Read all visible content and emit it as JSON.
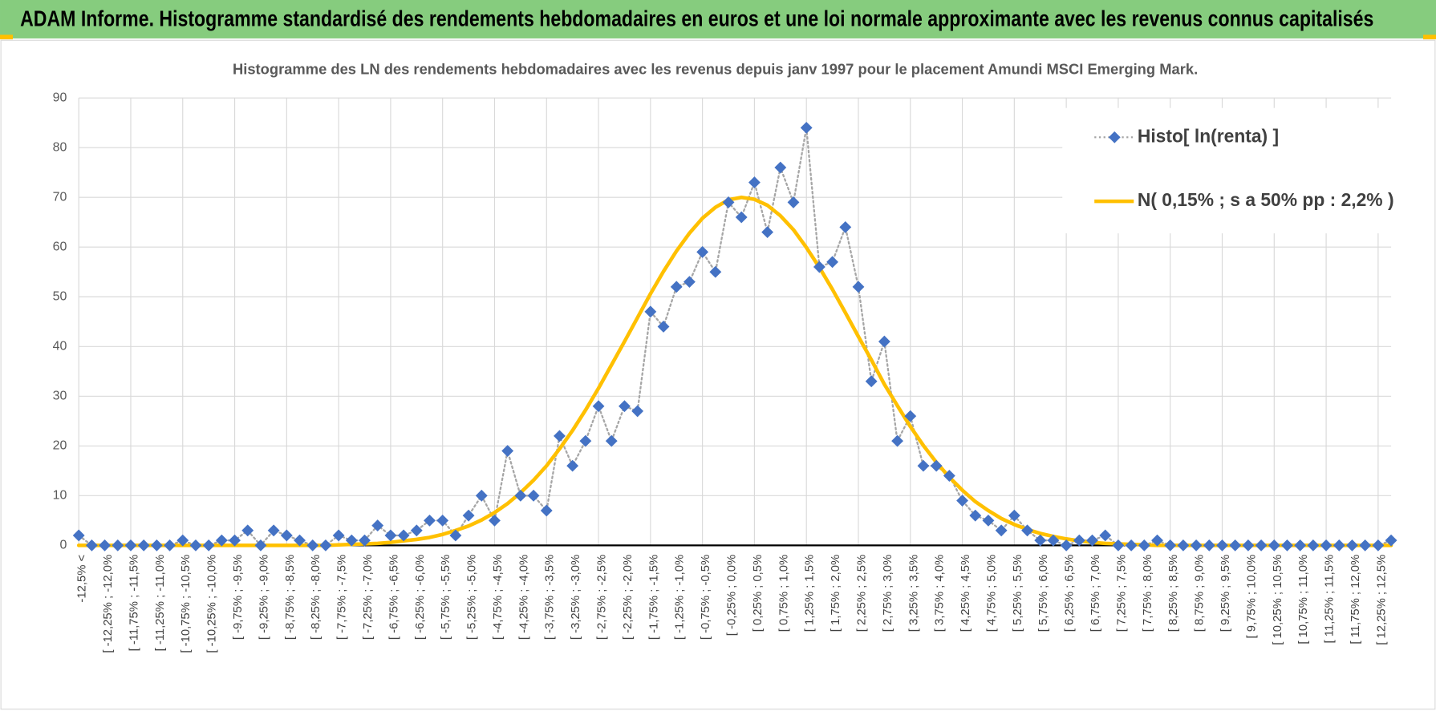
{
  "header": {
    "title": "ADAM Informe. Histogramme standardisé des rendements hebdomadaires en euros et une loi normale approximante avec les revenus connus capitalisés"
  },
  "chart_data": {
    "type": "line",
    "title": "Histogramme des LN des rendements hebdomadaires avec les revenus depuis janv 1997 pour le placement Amundi MSCI Emerging Mark.",
    "categories": [
      "-12,5% <",
      null,
      "[ -12,25% ; -12,0%",
      null,
      "[ -11,75% ; -11,5%",
      null,
      "[ -11,25% ; -11,0%",
      null,
      "[ -10,75% ; -10,5%",
      null,
      "[ -10,25% ; -10,0%",
      null,
      "[ -9,75% ; -9,5%",
      null,
      "[ -9,25% ; -9,0%",
      null,
      "[ -8,75% ; -8,5%",
      null,
      "[ -8,25% ; -8,0%",
      null,
      "[ -7,75% ; -7,5%",
      null,
      "[ -7,25% ; -7,0%",
      null,
      "[ -6,75% ; -6,5%",
      null,
      "[ -6,25% ; -6,0%",
      null,
      "[ -5,75% ; -5,5%",
      null,
      "[ -5,25% ; -5,0%",
      null,
      "[ -4,75% ; -4,5%",
      null,
      "[ -4,25% ; -4,0%",
      null,
      "[ -3,75% ; -3,5%",
      null,
      "[ -3,25% ; -3,0%",
      null,
      "[ -2,75% ; -2,5%",
      null,
      "[ -2,25% ; -2,0%",
      null,
      "[ -1,75% ; -1,5%",
      null,
      "[ -1,25% ; -1,0%",
      null,
      "[ -0,75% ; -0,5%",
      null,
      "[ -0,25% ; 0,0%",
      null,
      "[ 0,25% ; 0,5%",
      null,
      "[ 0,75% ; 1,0%",
      null,
      "[ 1,25% ; 1,5%",
      null,
      "[ 1,75% ; 2,0%",
      null,
      "[ 2,25% ; 2,5%",
      null,
      "[ 2,75% ; 3,0%",
      null,
      "[ 3,25% ; 3,5%",
      null,
      "[ 3,75% ; 4,0%",
      null,
      "[ 4,25% ; 4,5%",
      null,
      "[ 4,75% ; 5,0%",
      null,
      "[ 5,25% ; 5,5%",
      null,
      "[ 5,75% ; 6,0%",
      null,
      "[ 6,25% ; 6,5%",
      null,
      "[ 6,75% ; 7,0%",
      null,
      "[ 7,25% ; 7,5%",
      null,
      "[ 7,75% ; 8,0%",
      null,
      "[ 8,25% ; 8,5%",
      null,
      "[ 8,75% ; 9,0%",
      null,
      "[ 9,25% ; 9,5%",
      null,
      "[ 9,75% ; 10,0%",
      null,
      "[ 10,25% ; 10,5%",
      null,
      "[ 10,75% ; 11,0%",
      null,
      "[ 11,25% ; 11,5%",
      null,
      "[ 11,75% ; 12,0%",
      null,
      "[ 12,25% ; 12,5%",
      null
    ],
    "series": [
      {
        "name": "Histo[ ln(renta) ]",
        "color": "#4472c4",
        "line_color": "#a6a6a6",
        "line_style": "dotted",
        "marker": "diamond",
        "values": [
          2,
          0,
          0,
          0,
          0,
          0,
          0,
          0,
          1,
          0,
          0,
          1,
          1,
          3,
          0,
          3,
          2,
          1,
          0,
          0,
          2,
          1,
          1,
          4,
          2,
          2,
          3,
          5,
          5,
          2,
          6,
          10,
          5,
          19,
          10,
          10,
          7,
          22,
          16,
          21,
          28,
          21,
          28,
          27,
          47,
          44,
          52,
          53,
          59,
          55,
          69,
          66,
          73,
          63,
          76,
          69,
          84,
          56,
          57,
          64,
          52,
          33,
          41,
          21,
          26,
          16,
          16,
          14,
          9,
          6,
          5,
          3,
          6,
          3,
          1,
          1,
          0,
          1,
          1,
          2,
          0,
          0,
          0,
          1,
          0,
          0,
          0,
          0,
          0,
          0,
          0,
          0,
          0,
          0,
          0,
          0,
          0,
          0,
          0,
          0,
          0,
          1
        ]
      },
      {
        "name": "N( 0,15% ; s a 50% pp : 2,2% )",
        "color": "#ffc000",
        "line_style": "solid",
        "marker": "none",
        "values": [
          0,
          0,
          0,
          0,
          0,
          0,
          0,
          0,
          0,
          0,
          0,
          0,
          0,
          0,
          0,
          0,
          0,
          0,
          0,
          0,
          0.1,
          0.2,
          0.3,
          0.4,
          0.6,
          0.9,
          1.2,
          1.6,
          2.2,
          3.0,
          3.9,
          5.1,
          6.6,
          8.4,
          10.6,
          13.1,
          16.0,
          19.4,
          23.1,
          27.2,
          31.6,
          36.3,
          41.0,
          45.8,
          50.6,
          55.1,
          59.2,
          62.8,
          65.8,
          68.0,
          69.5,
          70,
          69.6,
          68.4,
          66.3,
          63.5,
          59.9,
          55.9,
          51.5,
          46.8,
          42.0,
          37.3,
          32.4,
          28.1,
          23.9,
          20.1,
          16.7,
          13.7,
          11.1,
          8.8,
          7.0,
          5.4,
          4.2,
          3.2,
          2.4,
          1.8,
          1.3,
          0.9,
          0.6,
          0.4,
          0.3,
          0.2,
          0.1,
          0,
          0,
          0,
          0,
          0,
          0,
          0,
          0,
          0,
          0,
          0,
          0,
          0,
          0,
          0,
          0,
          0,
          0,
          0
        ]
      }
    ],
    "ylim": [
      0,
      90
    ],
    "yticks": [
      0,
      10,
      20,
      30,
      40,
      50,
      60,
      70,
      80,
      90
    ],
    "grid": true,
    "legend": "top-right"
  }
}
